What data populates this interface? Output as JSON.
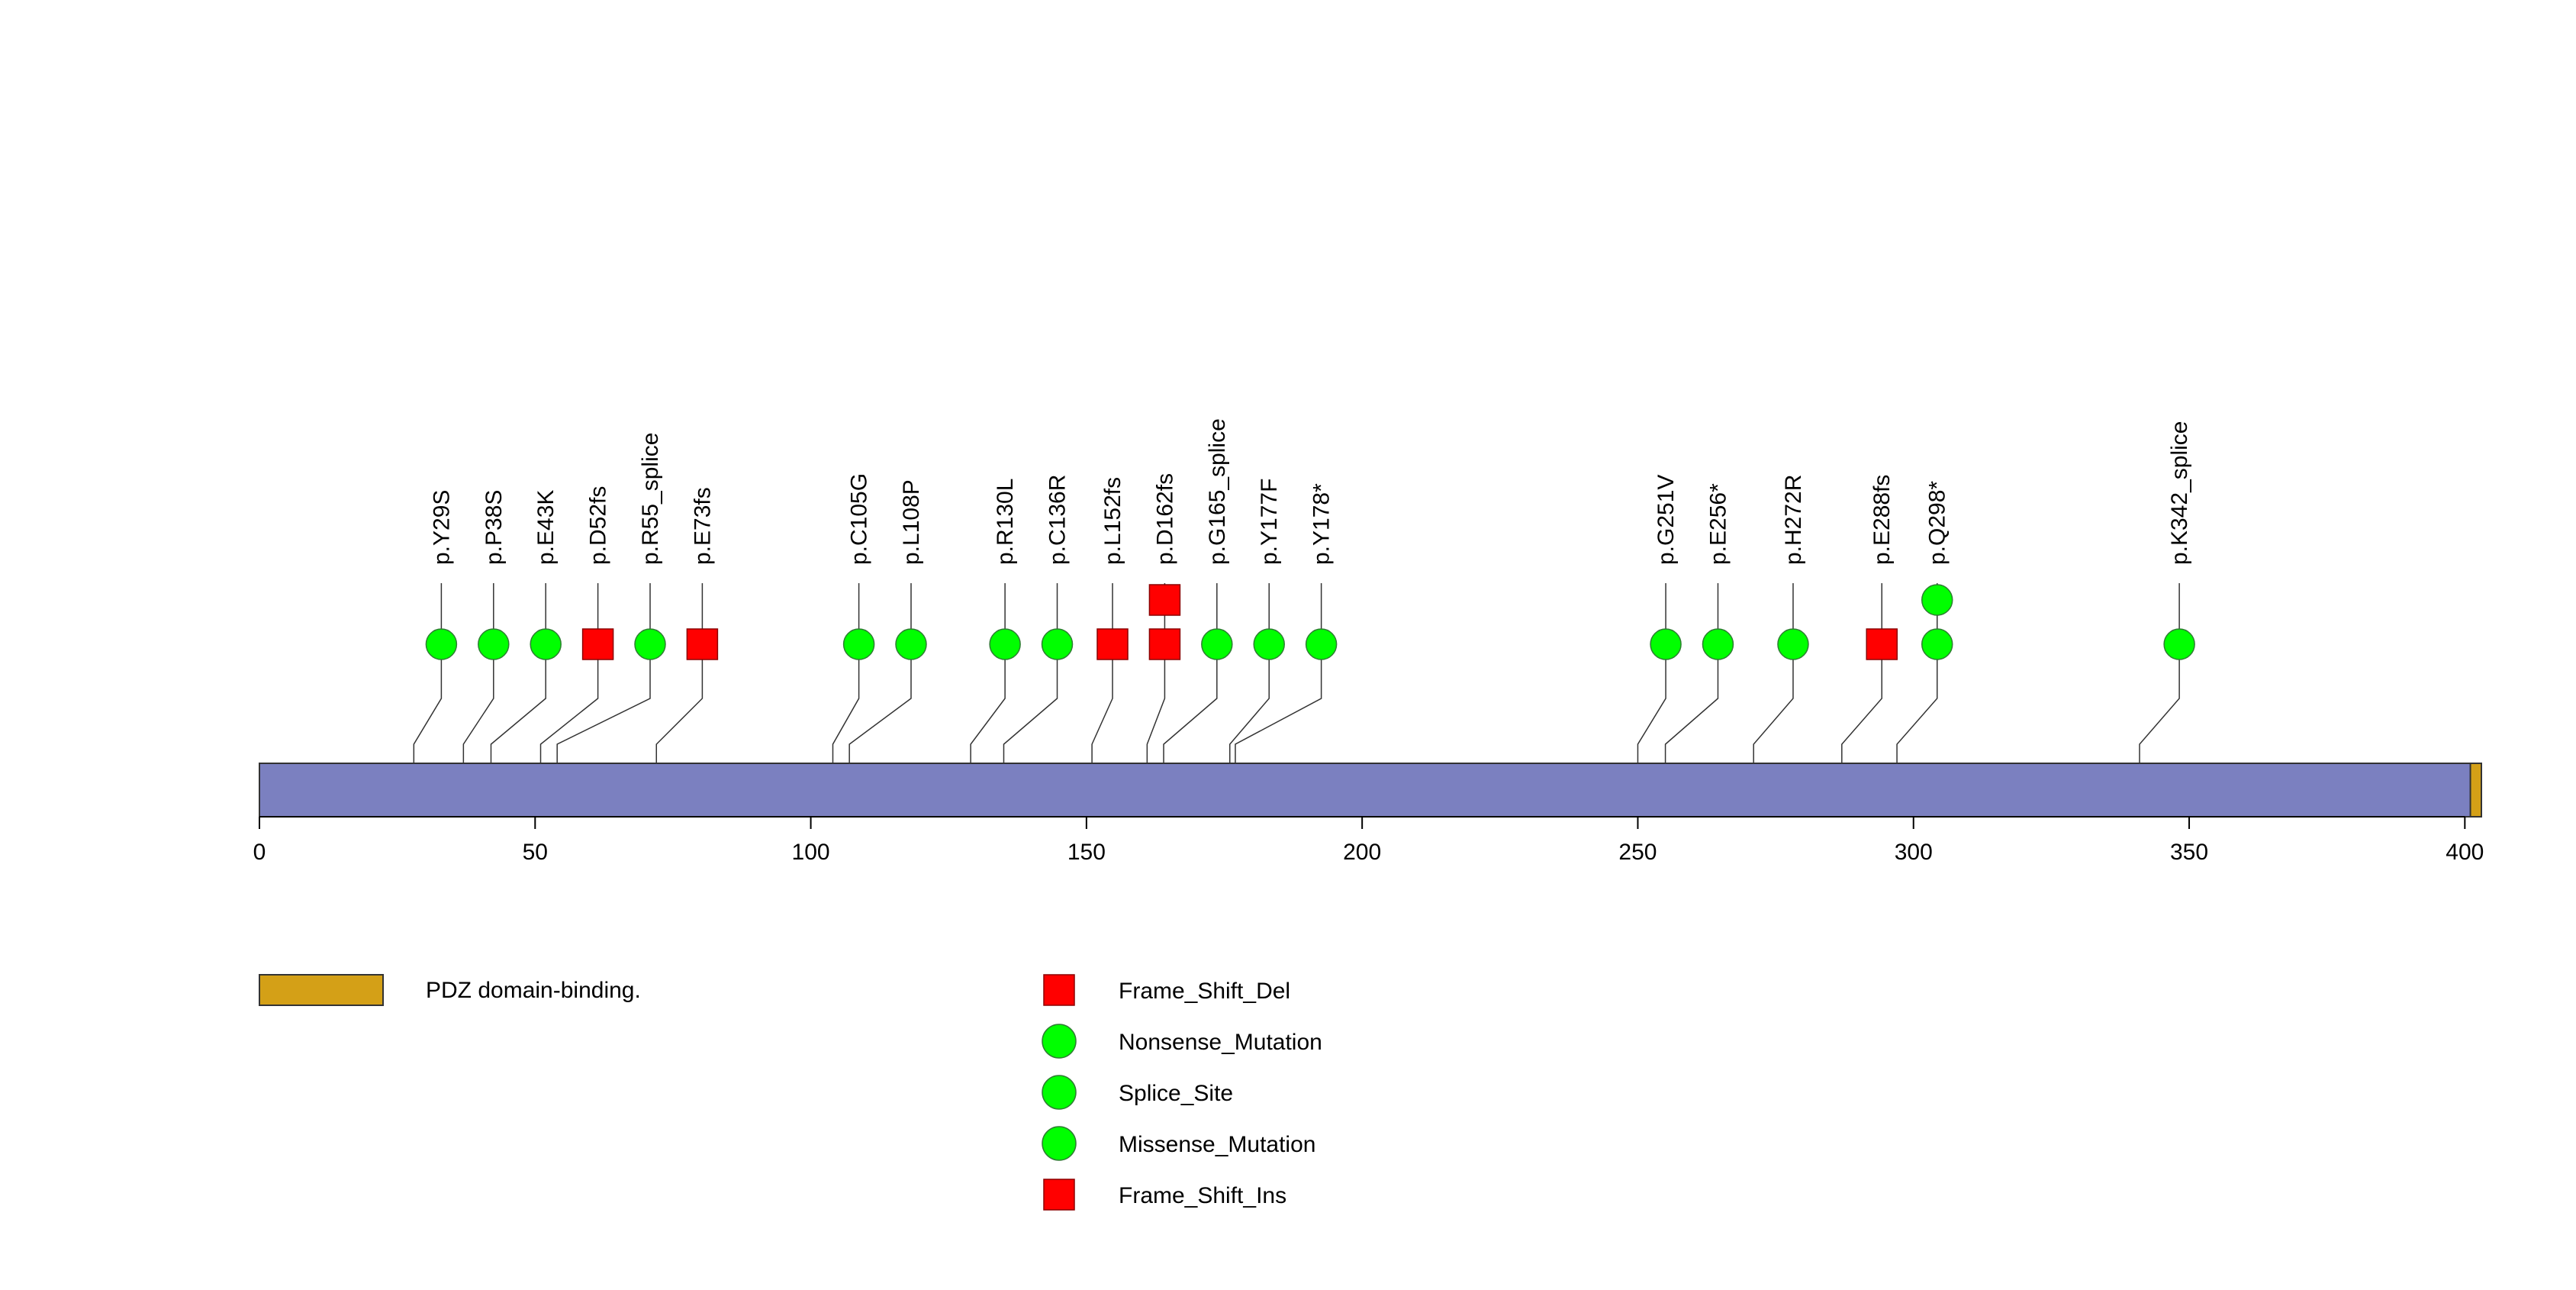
{
  "chart_data": {
    "type": "lollipop",
    "title": "",
    "protein_length": 403,
    "x_axis": {
      "range": [
        0,
        403
      ],
      "ticks": [
        0,
        50,
        100,
        150,
        200,
        250,
        300,
        350,
        400
      ],
      "tick_labels": [
        "0",
        "50",
        "100",
        "150",
        "200",
        "250",
        "300",
        "350",
        "400"
      ]
    },
    "backbone_color": "#7b80c0",
    "domains": [
      {
        "name": "PDZ domain-binding.",
        "start": 401,
        "end": 403,
        "color": "#d4a017"
      }
    ],
    "mutations": [
      {
        "label": "p.Y29S",
        "position": 28,
        "marker_index": 1,
        "stack": [
          {
            "type": "Missense_Mutation",
            "shape": "circle",
            "color": "#00ff00"
          }
        ]
      },
      {
        "label": "p.P38S",
        "position": 37,
        "marker_index": 2,
        "stack": [
          {
            "type": "Missense_Mutation",
            "shape": "circle",
            "color": "#00ff00"
          }
        ]
      },
      {
        "label": "p.E43K",
        "position": 42,
        "marker_index": 3,
        "stack": [
          {
            "type": "Missense_Mutation",
            "shape": "circle",
            "color": "#00ff00"
          }
        ]
      },
      {
        "label": "p.D52fs",
        "position": 51,
        "marker_index": 4,
        "stack": [
          {
            "type": "Frame_Shift_Del",
            "shape": "square",
            "color": "#ff0000"
          }
        ]
      },
      {
        "label": "p.R55_splice",
        "position": 54,
        "marker_index": 5,
        "stack": [
          {
            "type": "Splice_Site",
            "shape": "circle",
            "color": "#00ff00"
          }
        ]
      },
      {
        "label": "p.E73fs",
        "position": 72,
        "marker_index": 6,
        "stack": [
          {
            "type": "Frame_Shift_Del",
            "shape": "square",
            "color": "#ff0000"
          }
        ]
      },
      {
        "label": "p.C105G",
        "position": 104,
        "marker_index": 9,
        "stack": [
          {
            "type": "Missense_Mutation",
            "shape": "circle",
            "color": "#00ff00"
          }
        ]
      },
      {
        "label": "p.L108P",
        "position": 107,
        "marker_index": 10,
        "stack": [
          {
            "type": "Missense_Mutation",
            "shape": "circle",
            "color": "#00ff00"
          }
        ]
      },
      {
        "label": "p.R130L",
        "position": 129,
        "marker_index": 11.8,
        "stack": [
          {
            "type": "Missense_Mutation",
            "shape": "circle",
            "color": "#00ff00"
          }
        ]
      },
      {
        "label": "p.C136R",
        "position": 135,
        "marker_index": 12.8,
        "stack": [
          {
            "type": "Missense_Mutation",
            "shape": "circle",
            "color": "#00ff00"
          }
        ]
      },
      {
        "label": "p.L152fs",
        "position": 151,
        "marker_index": 13.86,
        "stack": [
          {
            "type": "Frame_Shift_Del",
            "shape": "square",
            "color": "#ff0000"
          }
        ]
      },
      {
        "label": "p.D162fs",
        "position": 161,
        "marker_index": 14.86,
        "stack": [
          {
            "type": "Frame_Shift_Del",
            "shape": "square",
            "color": "#ff0000"
          },
          {
            "type": "Frame_Shift_Ins",
            "shape": "square",
            "color": "#ff0000"
          }
        ]
      },
      {
        "label": "p.G165_splice",
        "position": 164,
        "marker_index": 15.86,
        "stack": [
          {
            "type": "Splice_Site",
            "shape": "circle",
            "color": "#00ff00"
          }
        ]
      },
      {
        "label": "p.Y177F",
        "position": 176,
        "marker_index": 16.86,
        "stack": [
          {
            "type": "Missense_Mutation",
            "shape": "circle",
            "color": "#00ff00"
          }
        ]
      },
      {
        "label": "p.Y178*",
        "position": 177,
        "marker_index": 17.86,
        "stack": [
          {
            "type": "Nonsense_Mutation",
            "shape": "circle",
            "color": "#00ff00"
          }
        ]
      },
      {
        "label": "p.G251V",
        "position": 250,
        "marker_index": 24.46,
        "stack": [
          {
            "type": "Missense_Mutation",
            "shape": "circle",
            "color": "#00ff00"
          }
        ]
      },
      {
        "label": "p.E256*",
        "position": 255,
        "marker_index": 25.46,
        "stack": [
          {
            "type": "Nonsense_Mutation",
            "shape": "circle",
            "color": "#00ff00"
          }
        ]
      },
      {
        "label": "p.H272R",
        "position": 271,
        "marker_index": 26.9,
        "stack": [
          {
            "type": "Missense_Mutation",
            "shape": "circle",
            "color": "#00ff00"
          }
        ]
      },
      {
        "label": "p.E288fs",
        "position": 287,
        "marker_index": 28.6,
        "stack": [
          {
            "type": "Frame_Shift_Del",
            "shape": "square",
            "color": "#ff0000"
          }
        ]
      },
      {
        "label": "p.Q298*",
        "position": 297,
        "marker_index": 29.66,
        "stack": [
          {
            "type": "Nonsense_Mutation",
            "shape": "circle",
            "color": "#00ff00"
          },
          {
            "type": "Nonsense_Mutation",
            "shape": "circle",
            "color": "#00ff00"
          }
        ]
      },
      {
        "label": "p.K342_splice",
        "position": 341,
        "marker_index": 34.3,
        "stack": [
          {
            "type": "Splice_Site",
            "shape": "circle",
            "color": "#00ff00"
          }
        ]
      }
    ],
    "legend": {
      "domains": [
        {
          "label": "PDZ domain-binding.",
          "color": "#d4a017"
        }
      ],
      "mutation_types": [
        {
          "label": "Frame_Shift_Del",
          "shape": "square",
          "color": "#ff0000"
        },
        {
          "label": "Nonsense_Mutation",
          "shape": "circle",
          "color": "#00ff00"
        },
        {
          "label": "Splice_Site",
          "shape": "circle",
          "color": "#00ff00"
        },
        {
          "label": "Missense_Mutation",
          "shape": "circle",
          "color": "#00ff00"
        },
        {
          "label": "Frame_Shift_Ins",
          "shape": "square",
          "color": "#ff0000"
        }
      ]
    }
  }
}
